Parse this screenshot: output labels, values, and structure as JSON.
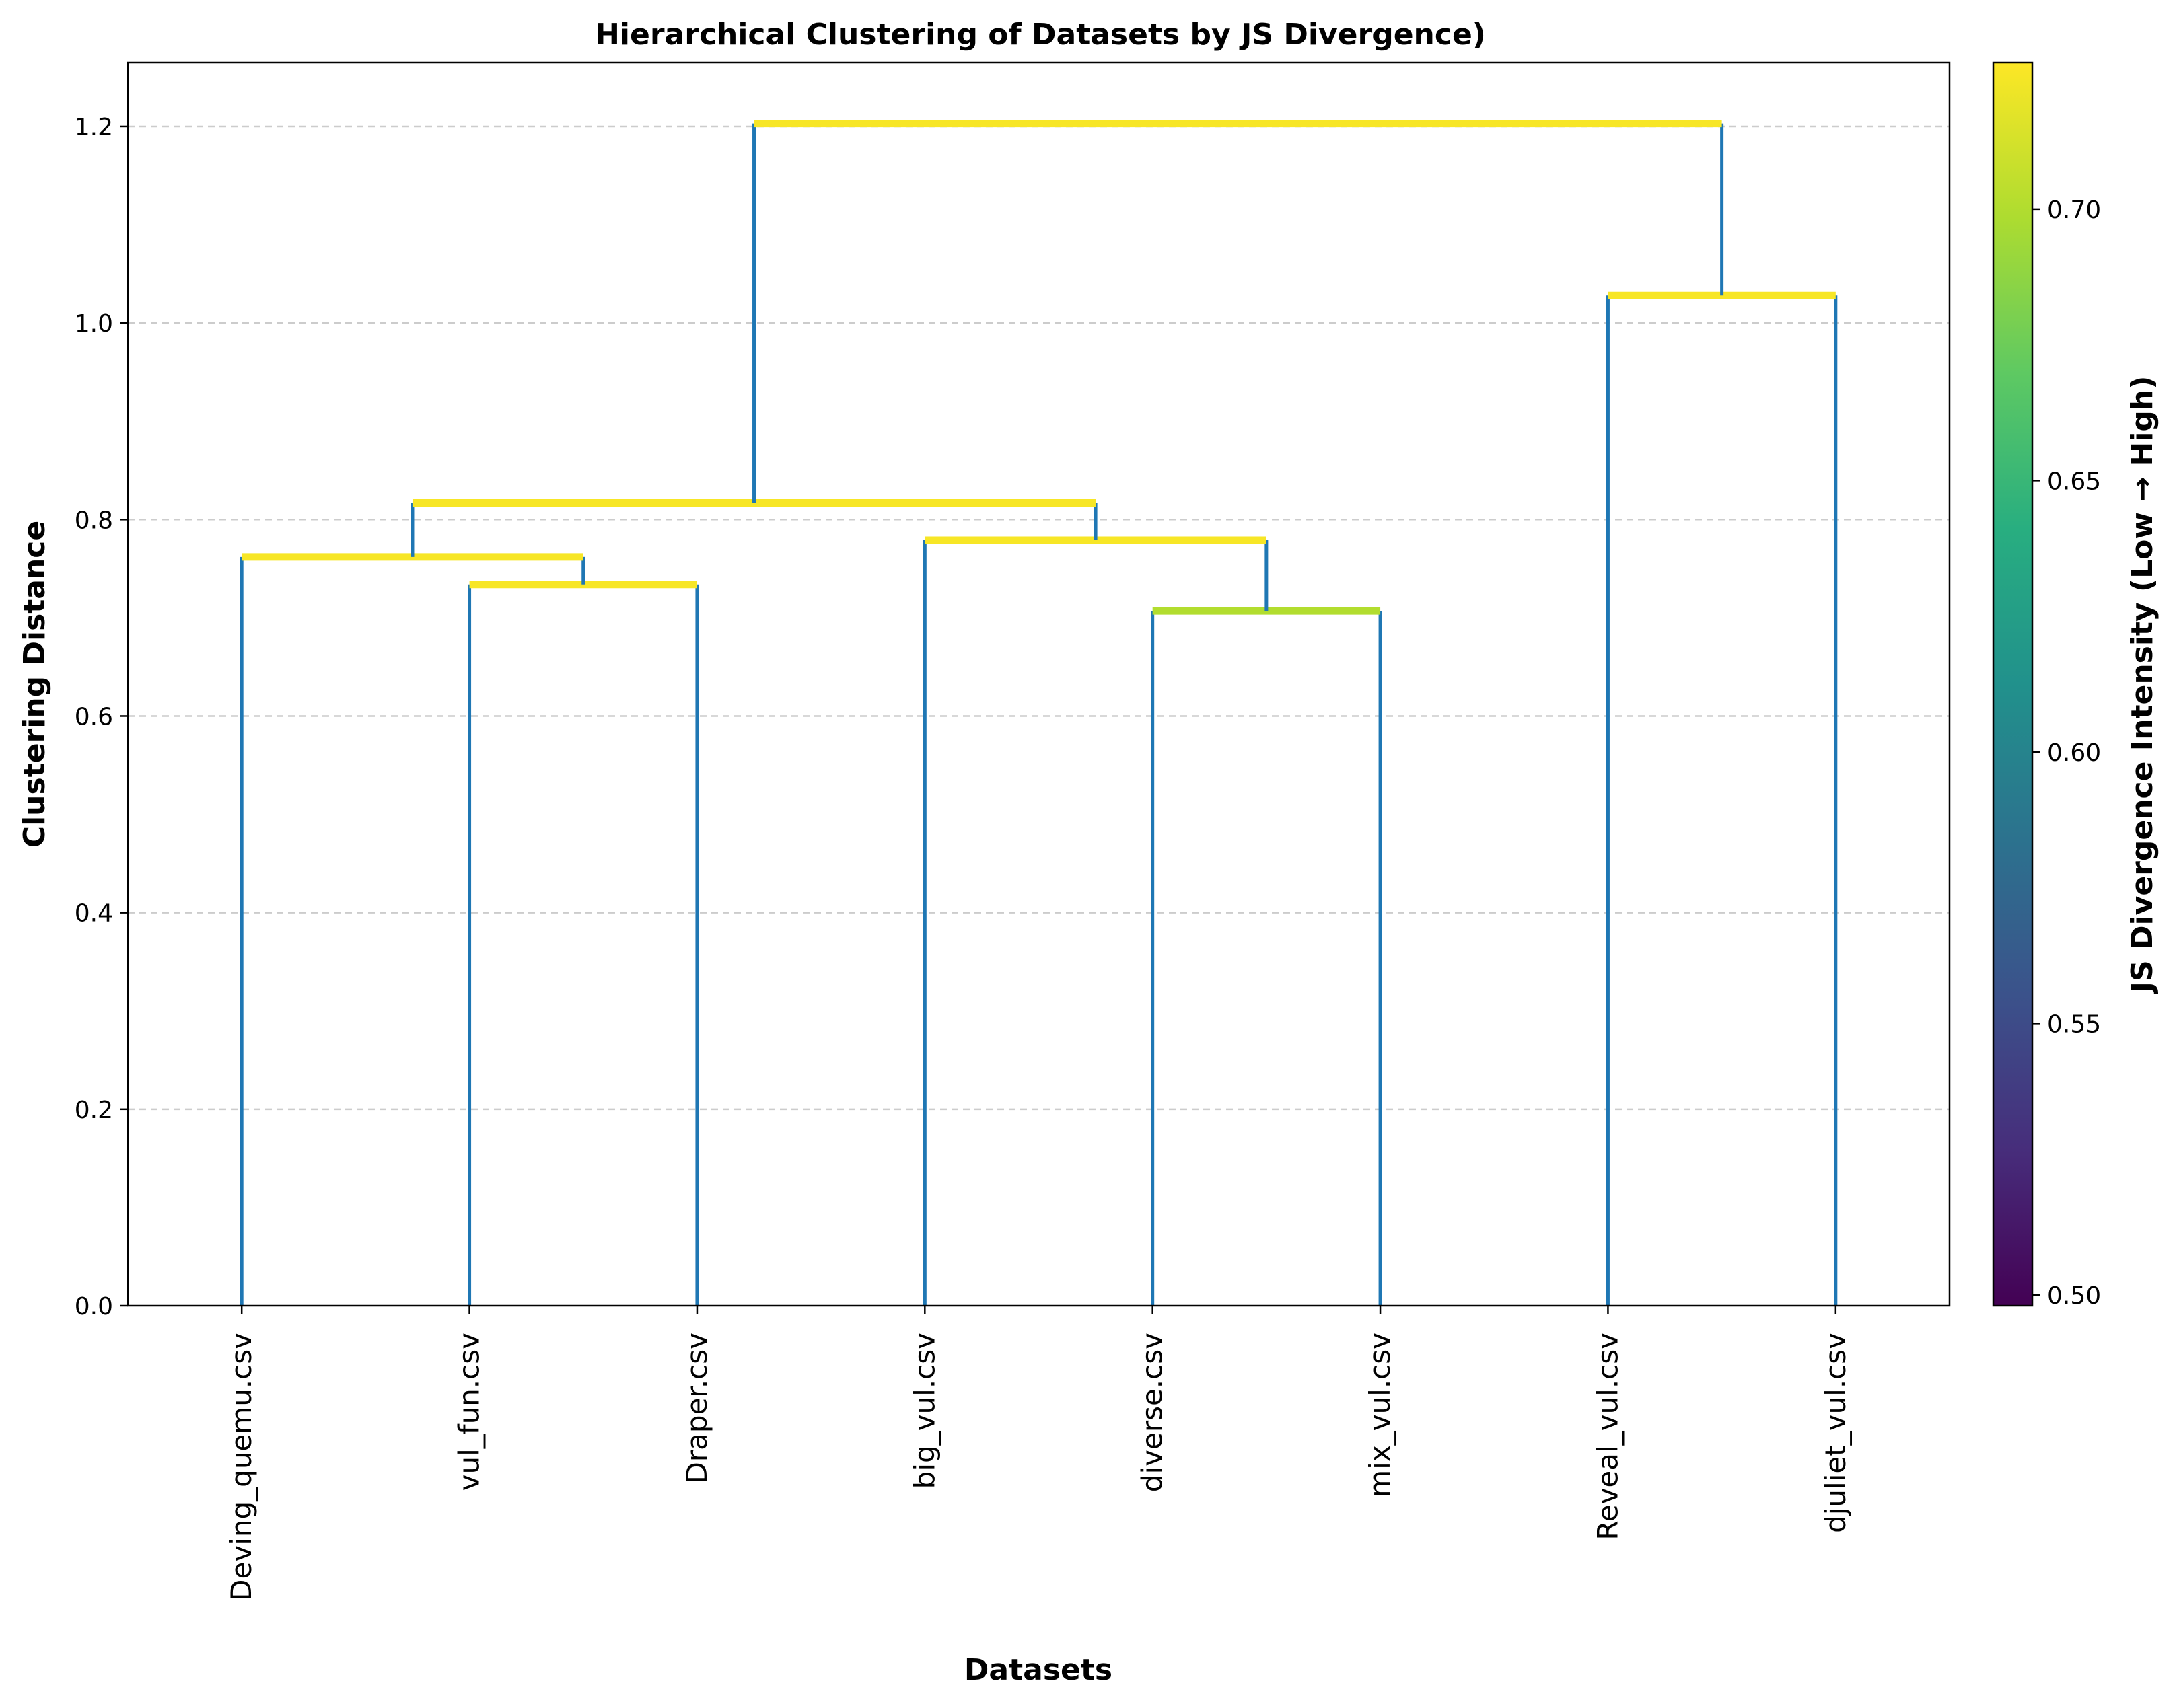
{
  "chart_data": {
    "type": "dendrogram",
    "title": "Hierarchical Clustering of Datasets by JS Divergence)",
    "xlabel": "Datasets",
    "ylabel": "Clustering Distance",
    "ylim": [
      0,
      1.265
    ],
    "yticks": [
      "0.0",
      "0.2",
      "0.4",
      "0.6",
      "0.8",
      "1.0",
      "1.2"
    ],
    "grid": "horizontal-dashed",
    "leaves": [
      "Deving_quemu.csv",
      "vul_fun.csv",
      "Draper.csv",
      "big_vul.csv",
      "diverse.csv",
      "mix_vul.csv",
      "Reveal_vul.csv",
      "djuliet_vul.csv"
    ],
    "merges": [
      {
        "left": 4,
        "right": 5,
        "distance": 0.707,
        "js_divergence": 0.7
      },
      {
        "left": 1,
        "right": 2,
        "distance": 0.734,
        "js_divergence": 0.725
      },
      {
        "left": 0,
        "right": "1+2",
        "distance": 0.762,
        "js_divergence": 0.725
      },
      {
        "left": 3,
        "right": "4+5",
        "distance": 0.779,
        "js_divergence": 0.725
      },
      {
        "left": "0+1+2",
        "right": "3+4+5",
        "distance": 0.817,
        "js_divergence": 0.725
      },
      {
        "left": 6,
        "right": 7,
        "distance": 1.028,
        "js_divergence": 0.725
      },
      {
        "left": "0-5",
        "right": "6+7",
        "distance": 1.203,
        "js_divergence": 0.725
      }
    ],
    "colorbar": {
      "label": "JS Divergence Intensity (Low → High)",
      "colormap": "viridis",
      "range": [
        0.498,
        0.727
      ],
      "ticks": [
        "0.50",
        "0.55",
        "0.60",
        "0.65",
        "0.70"
      ]
    },
    "colors": {
      "vertical_lines": "#1f77b4",
      "grid": "#cccccc"
    }
  }
}
